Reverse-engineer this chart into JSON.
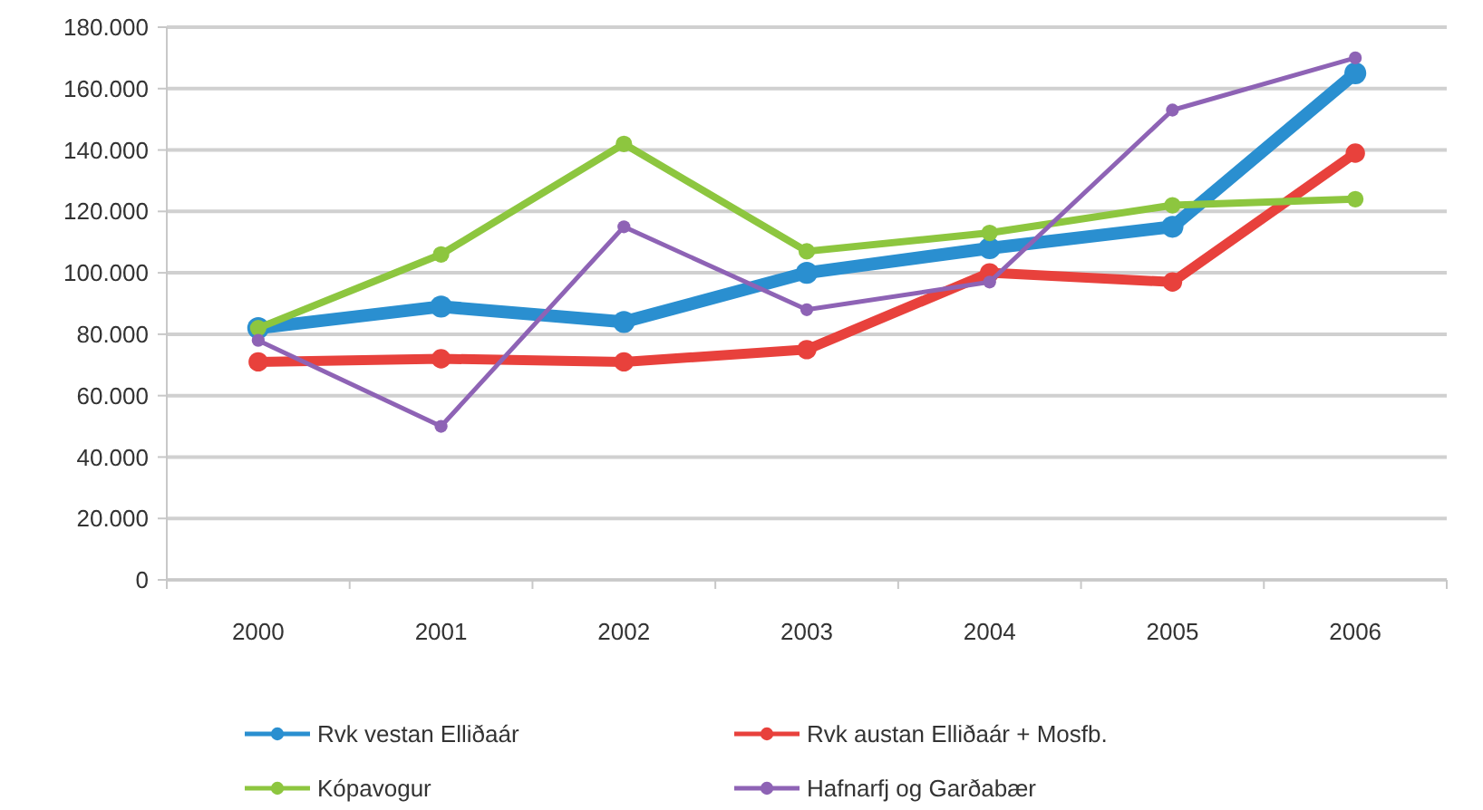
{
  "chart_data": {
    "type": "line",
    "categories": [
      "2000",
      "2001",
      "2002",
      "2003",
      "2004",
      "2005",
      "2006"
    ],
    "series": [
      {
        "name": "Rvk vestan  Elliðaár",
        "color": "#2a8fd0",
        "values": [
          82000,
          89000,
          84000,
          100000,
          108000,
          115000,
          165000
        ]
      },
      {
        "name": "Rvk austan  Elliðaár + Mosfb.",
        "color": "#e8413c",
        "values": [
          71000,
          72000,
          71000,
          75000,
          100000,
          97000,
          139000
        ]
      },
      {
        "name": "Kópavogur",
        "color": "#8dc63f",
        "values": [
          82000,
          106000,
          142000,
          107000,
          113000,
          122000,
          124000
        ]
      },
      {
        "name": "Hafnarfj og Garðabær",
        "color": "#8e63b5",
        "values": [
          78000,
          50000,
          115000,
          88000,
          97000,
          153000,
          170000
        ]
      }
    ],
    "ylim": [
      0,
      180000
    ],
    "yticks": [
      {
        "value": 0,
        "label": "0"
      },
      {
        "value": 20000,
        "label": "20.000"
      },
      {
        "value": 40000,
        "label": "40.000"
      },
      {
        "value": 60000,
        "label": "60.000"
      },
      {
        "value": 80000,
        "label": "80.000"
      },
      {
        "value": 100000,
        "label": "100.000"
      },
      {
        "value": 120000,
        "label": "120.000"
      },
      {
        "value": 140000,
        "label": "140.000"
      },
      {
        "value": 160000,
        "label": "160.000"
      },
      {
        "value": 180000,
        "label": "180.000"
      }
    ],
    "grid": "y",
    "legend": "bottom",
    "marker": "circle",
    "line_style": "solid"
  }
}
